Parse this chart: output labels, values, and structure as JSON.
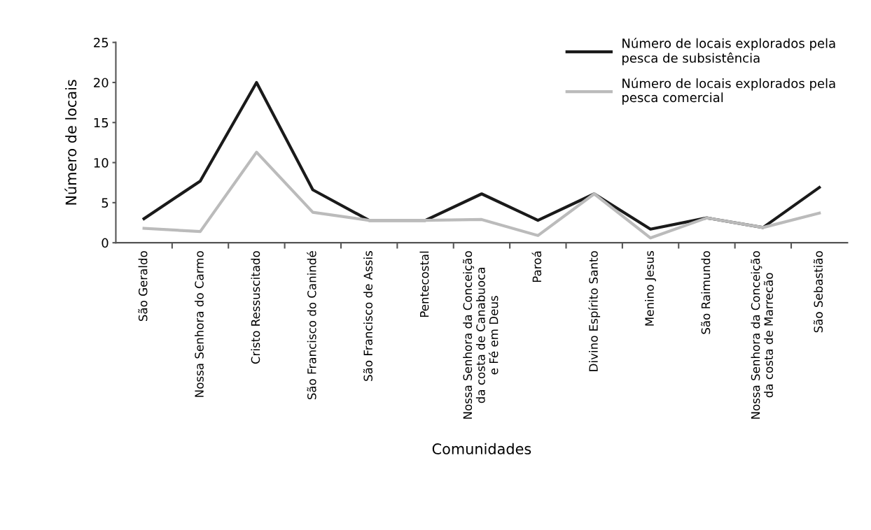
{
  "chart_data": {
    "type": "line",
    "xlabel": "Comunidades",
    "ylabel": "Número de locais",
    "categories": [
      "São Geraldo",
      "Nossa Senhora do Carmo",
      "Cristo Ressuscitado",
      "São Francisco do Canindé",
      "São Francisco de Assis",
      "Pentecostal",
      "Nossa Senhora da Conceição\nda costa de Canabuoca\ne Fé em Deus",
      "Paroá",
      "Divino Espírito Santo",
      "Menino Jesus",
      "São Raimundo",
      "Nossa Senhora da Conceição\nda costa de Marrecão",
      "São Sebastião"
    ],
    "series": [
      {
        "name": "Número de locais explorados pela\npesca de subsistência",
        "color": "#1a1a1a",
        "values": [
          3,
          7.7,
          20,
          6.6,
          2.8,
          2.8,
          6.1,
          2.8,
          6.1,
          1.7,
          3.1,
          1.9,
          6.9
        ]
      },
      {
        "name": "Número de locais explorados pela\npesca comercial",
        "color": "#bbbbbb",
        "values": [
          1.8,
          1.4,
          11.3,
          3.8,
          2.8,
          2.8,
          2.9,
          0.9,
          6.1,
          0.6,
          3.1,
          1.9,
          3.7
        ]
      }
    ],
    "ylim": [
      0,
      25
    ],
    "yticks": [
      0,
      5,
      10,
      15,
      20,
      25
    ],
    "grid": false,
    "legend": "top right",
    "marker": "none",
    "line_style": "solid"
  }
}
